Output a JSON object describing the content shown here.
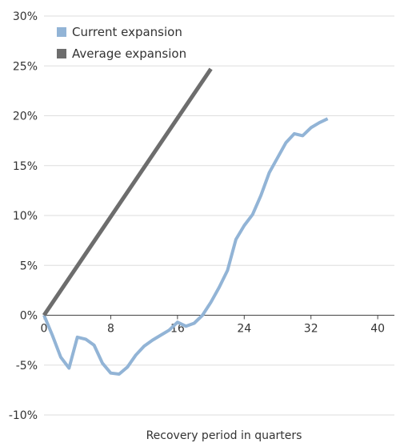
{
  "chart_data": {
    "type": "line",
    "title": "",
    "xlabel": "Recovery period in quarters",
    "ylabel": "",
    "xlim": [
      0,
      42
    ],
    "ylim": [
      -10,
      30
    ],
    "x_ticks": [
      0,
      8,
      16,
      24,
      32,
      40
    ],
    "y_ticks": [
      -10,
      -5,
      0,
      5,
      10,
      15,
      20,
      25,
      30
    ],
    "y_tick_labels": [
      "-10%",
      "-5%",
      "0%",
      "5%",
      "10%",
      "15%",
      "20%",
      "25%",
      "30%"
    ],
    "grid": "horizontal",
    "legend": "top-left",
    "series": [
      {
        "name": "Current expansion",
        "color": "#92b4d6",
        "x": [
          0,
          1,
          2,
          3,
          4,
          5,
          6,
          7,
          8,
          9,
          10,
          11,
          12,
          13,
          14,
          15,
          16,
          17,
          18,
          19,
          20,
          21,
          22,
          23,
          24,
          25,
          26,
          27,
          28,
          29,
          30,
          31,
          32,
          33,
          34
        ],
        "y": [
          0,
          -2,
          -4.2,
          -5.3,
          -2.2,
          -2.4,
          -3,
          -4.8,
          -5.8,
          -5.9,
          -5.2,
          -4,
          -3.1,
          -2.5,
          -2,
          -1.5,
          -0.7,
          -1.1,
          -0.8,
          0,
          1.3,
          2.8,
          4.5,
          7.6,
          9,
          10.1,
          12,
          14.3,
          15.8,
          17.3,
          18.2,
          18,
          18.8,
          19.3,
          19.7
        ]
      },
      {
        "name": "Average expansion",
        "color": "#6d6d6d",
        "x": [
          0,
          20
        ],
        "y": [
          0,
          24.7
        ]
      }
    ]
  }
}
